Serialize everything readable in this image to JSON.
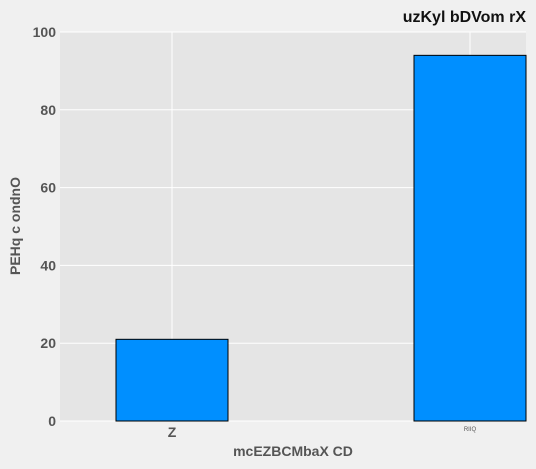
{
  "chart_data": {
    "type": "bar",
    "title": "uzKyl bDVom rX",
    "xlabel": "mcEZBCMbaX CD",
    "ylabel": "PEHq c ondnO",
    "categories": [
      "Z",
      "RIIQ"
    ],
    "values": [
      21,
      94
    ],
    "ylim": [
      0,
      100
    ],
    "yticks": [
      0,
      20,
      40,
      60,
      80,
      100
    ],
    "grid": true,
    "bar_color": "#008fff",
    "plot_background": "#e5e5e5"
  }
}
